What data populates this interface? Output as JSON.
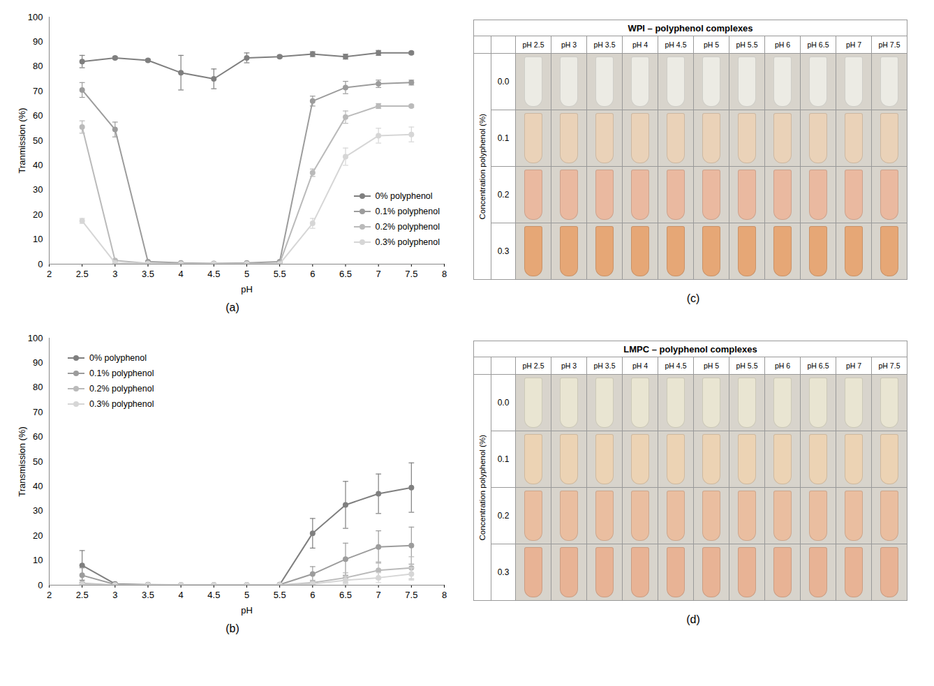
{
  "chart_data": [
    {
      "type": "line",
      "panel": "(a)",
      "xlabel": "pH",
      "ylabel": "Tranmission (%)",
      "x": [
        2.5,
        3,
        3.5,
        4,
        4.5,
        5,
        5.5,
        6,
        6.5,
        7,
        7.5
      ],
      "xlim": [
        2,
        8
      ],
      "xticks": [
        2,
        2.5,
        3,
        3.5,
        4,
        4.5,
        5,
        5.5,
        6,
        6.5,
        7,
        7.5,
        8
      ],
      "ylim": [
        0,
        100
      ],
      "yticks": [
        0,
        10,
        20,
        30,
        40,
        50,
        60,
        70,
        80,
        90,
        100
      ],
      "grid": false,
      "legend": "lower right",
      "marker": "circle",
      "series": [
        {
          "name": "0% polyphenol",
          "color": "#7f7f7f",
          "values": [
            82,
            83.5,
            82.5,
            77.5,
            75,
            83.5,
            84,
            85,
            84,
            85.5,
            85.5
          ],
          "errors": [
            2.5,
            0.5,
            0.5,
            7,
            4,
            2,
            0.5,
            1,
            1,
            1,
            0.5
          ]
        },
        {
          "name": "0.1% polyphenol",
          "color": "#9c9c9c",
          "values": [
            70.5,
            54.5,
            1,
            0.5,
            0.3,
            0.5,
            1,
            66,
            71.5,
            73,
            73.5
          ],
          "errors": [
            3,
            3,
            0.3,
            0.2,
            0.1,
            0.2,
            0.3,
            2,
            2.5,
            1.5,
            1
          ]
        },
        {
          "name": "0.2% polyphenol",
          "color": "#bababa",
          "values": [
            55.5,
            1.5,
            0.3,
            0.2,
            0.2,
            0.2,
            0.3,
            37,
            59.5,
            64,
            64
          ],
          "errors": [
            2.5,
            0.3,
            0.1,
            0.1,
            0.1,
            0.1,
            0.1,
            1.5,
            2.5,
            1,
            0.5
          ]
        },
        {
          "name": "0.3% polyphenol",
          "color": "#d6d6d6",
          "values": [
            17.5,
            0.5,
            0.2,
            0.1,
            0.1,
            0.1,
            0.1,
            16.5,
            43.5,
            52,
            52.5
          ],
          "errors": [
            1,
            0.2,
            0.1,
            0.1,
            0.1,
            0.1,
            0.1,
            2,
            3.5,
            3,
            3
          ]
        }
      ]
    },
    {
      "type": "line",
      "panel": "(b)",
      "xlabel": "pH",
      "ylabel": "Transmission (%)",
      "x": [
        2.5,
        3,
        3.5,
        4,
        4.5,
        5,
        5.5,
        6,
        6.5,
        7,
        7.5
      ],
      "xlim": [
        2,
        8
      ],
      "xticks": [
        2,
        2.5,
        3,
        3.5,
        4,
        4.5,
        5,
        5.5,
        6,
        6.5,
        7,
        7.5,
        8
      ],
      "ylim": [
        0,
        100
      ],
      "yticks": [
        0,
        10,
        20,
        30,
        40,
        50,
        60,
        70,
        80,
        90,
        100
      ],
      "grid": false,
      "legend": "upper left",
      "marker": "circle",
      "series": [
        {
          "name": "0% polyphenol",
          "color": "#7f7f7f",
          "values": [
            8,
            0.5,
            0.2,
            0.1,
            0.1,
            0.1,
            0.2,
            21,
            32.5,
            37,
            39.5
          ],
          "errors": [
            6,
            0.3,
            0.1,
            0.1,
            0.1,
            0.1,
            0.1,
            6,
            9.5,
            8,
            10
          ]
        },
        {
          "name": "0.1% polyphenol",
          "color": "#9c9c9c",
          "values": [
            4,
            0.3,
            0.1,
            0.1,
            0.1,
            0.1,
            0.2,
            4.5,
            10.5,
            15.5,
            16
          ],
          "errors": [
            3,
            0.2,
            0.1,
            0.1,
            0.1,
            0.1,
            0.1,
            3,
            6.5,
            6.5,
            7.5
          ]
        },
        {
          "name": "0.2% polyphenol",
          "color": "#bababa",
          "values": [
            0.8,
            0.1,
            0.1,
            0.1,
            0.1,
            0.1,
            0.1,
            1,
            3,
            6,
            7
          ],
          "errors": [
            0.5,
            0.1,
            0.1,
            0.1,
            0.1,
            0.1,
            0.1,
            1,
            2,
            3.5,
            4.5
          ]
        },
        {
          "name": "0.3% polyphenol",
          "color": "#d6d6d6",
          "values": [
            0.3,
            0.1,
            0.1,
            0.1,
            0.1,
            0.1,
            0.1,
            0.5,
            2,
            3,
            4.5
          ],
          "errors": [
            0.3,
            0.1,
            0.1,
            0.1,
            0.1,
            0.1,
            0.1,
            0.5,
            1.5,
            2,
            2.5
          ]
        }
      ]
    }
  ],
  "photo_panels": [
    {
      "panel": "(c)",
      "title": "WPI – polyphenol complexes",
      "row_axis_label": "Concentration polyphenol (%)",
      "columns": [
        "pH 2.5",
        "pH 3",
        "pH 3.5",
        "pH 4",
        "pH 4.5",
        "pH 5",
        "pH 5.5",
        "pH 6",
        "pH 6.5",
        "pH 7",
        "pH 7.5"
      ],
      "rows": [
        "0.0",
        "0.1",
        "0.2",
        "0.3"
      ],
      "colors": [
        "#ecebe4",
        "#ead2b8",
        "#eab9a0",
        "#e6a776"
      ]
    },
    {
      "panel": "(d)",
      "title": "LMPC – polyphenol complexes",
      "row_axis_label": "Concentration polyphenol (%)",
      "columns": [
        "pH 2.5",
        "pH 3",
        "pH 3.5",
        "pH 4",
        "pH 4.5",
        "pH 5",
        "pH 5.5",
        "pH 6",
        "pH 6.5",
        "pH 7",
        "pH 7.5"
      ],
      "rows": [
        "0.0",
        "0.1",
        "0.2",
        "0.3"
      ],
      "colors": [
        "#e9e5d2",
        "#ecd3b4",
        "#eabea0",
        "#e8b395"
      ]
    }
  ]
}
